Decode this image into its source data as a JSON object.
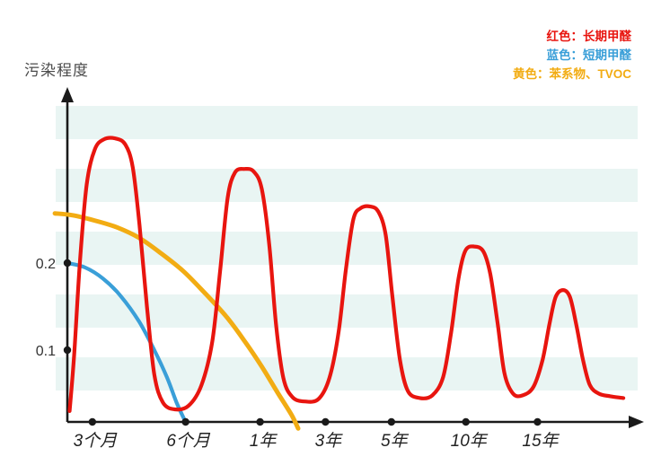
{
  "legend": {
    "items": [
      {
        "text": "红色：长期甲醛",
        "color": "#e8150f"
      },
      {
        "text": "蓝色：短期甲醛",
        "color": "#3a9fd8"
      },
      {
        "text": "黄色：苯系物、TVOC",
        "color": "#f2ac13"
      }
    ]
  },
  "chart_data": {
    "type": "line",
    "title": "",
    "xlabel": "",
    "ylabel": "污染程度",
    "ylim": [
      0,
      0.4
    ],
    "grid": "horizontal-stripes",
    "stripe_color": "#e9f5f3",
    "axis_color": "#1a1a1a",
    "legend_position": "top-right",
    "y_ticks": [
      {
        "label": "0.2",
        "value": 0.2
      },
      {
        "label": "0.1",
        "value": 0.1
      }
    ],
    "x_ticks": [
      {
        "label": "3个月",
        "pos": 0.044
      },
      {
        "label": "6个月",
        "pos": 0.208
      },
      {
        "label": "1年",
        "pos": 0.339
      },
      {
        "label": "3年",
        "pos": 0.454
      },
      {
        "label": "5年",
        "pos": 0.57
      },
      {
        "label": "10年",
        "pos": 0.701
      },
      {
        "label": "15年",
        "pos": 0.827
      }
    ],
    "series": [
      {
        "name": "长期甲醛",
        "color": "#e8150f",
        "width": 4.2,
        "points": [
          [
            0.004,
            0.03
          ],
          [
            0.012,
            0.095
          ],
          [
            0.022,
            0.2
          ],
          [
            0.034,
            0.29
          ],
          [
            0.048,
            0.33
          ],
          [
            0.064,
            0.342
          ],
          [
            0.085,
            0.343
          ],
          [
            0.102,
            0.336
          ],
          [
            0.115,
            0.31
          ],
          [
            0.127,
            0.243
          ],
          [
            0.14,
            0.15
          ],
          [
            0.153,
            0.072
          ],
          [
            0.168,
            0.04
          ],
          [
            0.189,
            0.032
          ],
          [
            0.213,
            0.036
          ],
          [
            0.236,
            0.06
          ],
          [
            0.255,
            0.11
          ],
          [
            0.269,
            0.193
          ],
          [
            0.282,
            0.275
          ],
          [
            0.295,
            0.304
          ],
          [
            0.312,
            0.308
          ],
          [
            0.328,
            0.305
          ],
          [
            0.342,
            0.285
          ],
          [
            0.355,
            0.222
          ],
          [
            0.367,
            0.13
          ],
          [
            0.38,
            0.068
          ],
          [
            0.396,
            0.046
          ],
          [
            0.418,
            0.041
          ],
          [
            0.442,
            0.044
          ],
          [
            0.461,
            0.068
          ],
          [
            0.477,
            0.12
          ],
          [
            0.49,
            0.193
          ],
          [
            0.503,
            0.25
          ],
          [
            0.516,
            0.263
          ],
          [
            0.532,
            0.265
          ],
          [
            0.547,
            0.259
          ],
          [
            0.56,
            0.232
          ],
          [
            0.572,
            0.16
          ],
          [
            0.585,
            0.089
          ],
          [
            0.599,
            0.053
          ],
          [
            0.62,
            0.045
          ],
          [
            0.642,
            0.048
          ],
          [
            0.661,
            0.069
          ],
          [
            0.675,
            0.12
          ],
          [
            0.688,
            0.182
          ],
          [
            0.7,
            0.214
          ],
          [
            0.716,
            0.219
          ],
          [
            0.732,
            0.213
          ],
          [
            0.744,
            0.187
          ],
          [
            0.757,
            0.13
          ],
          [
            0.769,
            0.073
          ],
          [
            0.784,
            0.05
          ],
          [
            0.801,
            0.048
          ],
          [
            0.82,
            0.058
          ],
          [
            0.836,
            0.089
          ],
          [
            0.848,
            0.13
          ],
          [
            0.859,
            0.161
          ],
          [
            0.872,
            0.169
          ],
          [
            0.884,
            0.161
          ],
          [
            0.895,
            0.13
          ],
          [
            0.907,
            0.089
          ],
          [
            0.919,
            0.06
          ],
          [
            0.935,
            0.05
          ],
          [
            0.955,
            0.047
          ],
          [
            0.978,
            0.045
          ]
        ]
      },
      {
        "name": "短期甲醛",
        "color": "#3a9fd8",
        "width": 4.2,
        "points": [
          [
            0.0,
            0.2
          ],
          [
            0.031,
            0.195
          ],
          [
            0.063,
            0.182
          ],
          [
            0.094,
            0.162
          ],
          [
            0.126,
            0.133
          ],
          [
            0.153,
            0.1
          ],
          [
            0.175,
            0.069
          ],
          [
            0.192,
            0.04
          ],
          [
            0.206,
            0.02
          ]
        ]
      },
      {
        "name": "苯系物、TVOC",
        "color": "#f2ac13",
        "width": 5,
        "points": [
          [
            -0.022,
            0.257
          ],
          [
            0.008,
            0.255
          ],
          [
            0.047,
            0.249
          ],
          [
            0.087,
            0.241
          ],
          [
            0.126,
            0.229
          ],
          [
            0.165,
            0.211
          ],
          [
            0.205,
            0.19
          ],
          [
            0.244,
            0.164
          ],
          [
            0.279,
            0.139
          ],
          [
            0.31,
            0.112
          ],
          [
            0.342,
            0.081
          ],
          [
            0.37,
            0.051
          ],
          [
            0.394,
            0.026
          ],
          [
            0.406,
            0.01
          ]
        ]
      }
    ]
  }
}
